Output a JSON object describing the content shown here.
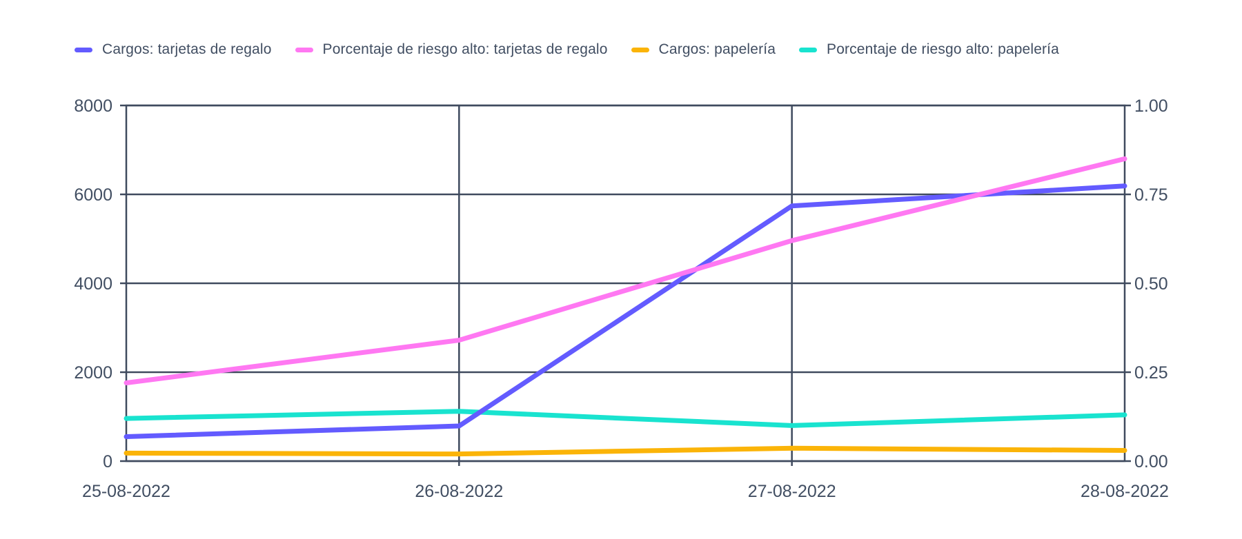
{
  "legend": {
    "position": "top"
  },
  "axis_text_color": "#414E62",
  "grid_color": "#3F4A5E",
  "background_color": "#ffffff",
  "chart_data": {
    "type": "line",
    "x": [
      "25-08-2022",
      "26-08-2022",
      "27-08-2022",
      "28-08-2022"
    ],
    "series": [
      {
        "name": "Cargos: tarjetas de regalo",
        "axis": "left",
        "color": "#635BFF",
        "values": [
          550,
          790,
          5740,
          6190
        ]
      },
      {
        "name": "Porcentaje de riesgo alto: tarjetas de regalo",
        "axis": "right",
        "color": "#FF78F2",
        "values": [
          0.22,
          0.34,
          0.62,
          0.85
        ]
      },
      {
        "name": "Cargos: papelería",
        "axis": "left",
        "color": "#FBB408",
        "values": [
          180,
          160,
          290,
          240
        ]
      },
      {
        "name": "Porcentaje de riesgo alto: papelería",
        "axis": "right",
        "color": "#19E3CF",
        "values": [
          0.12,
          0.14,
          0.1,
          0.13
        ]
      }
    ],
    "left_axis": {
      "min": 0,
      "max": 8000,
      "tick_labels": [
        "0",
        "2000",
        "4000",
        "6000",
        "8000"
      ],
      "tick_values": [
        0,
        2000,
        4000,
        6000,
        8000
      ]
    },
    "right_axis": {
      "min": 0,
      "max": 1,
      "tick_labels": [
        "0.00",
        "0.25",
        "0.50",
        "0.75",
        "1.00"
      ],
      "tick_values": [
        0,
        0.25,
        0.5,
        0.75,
        1
      ]
    },
    "grid": "on",
    "legend_position": "top",
    "title": ""
  }
}
